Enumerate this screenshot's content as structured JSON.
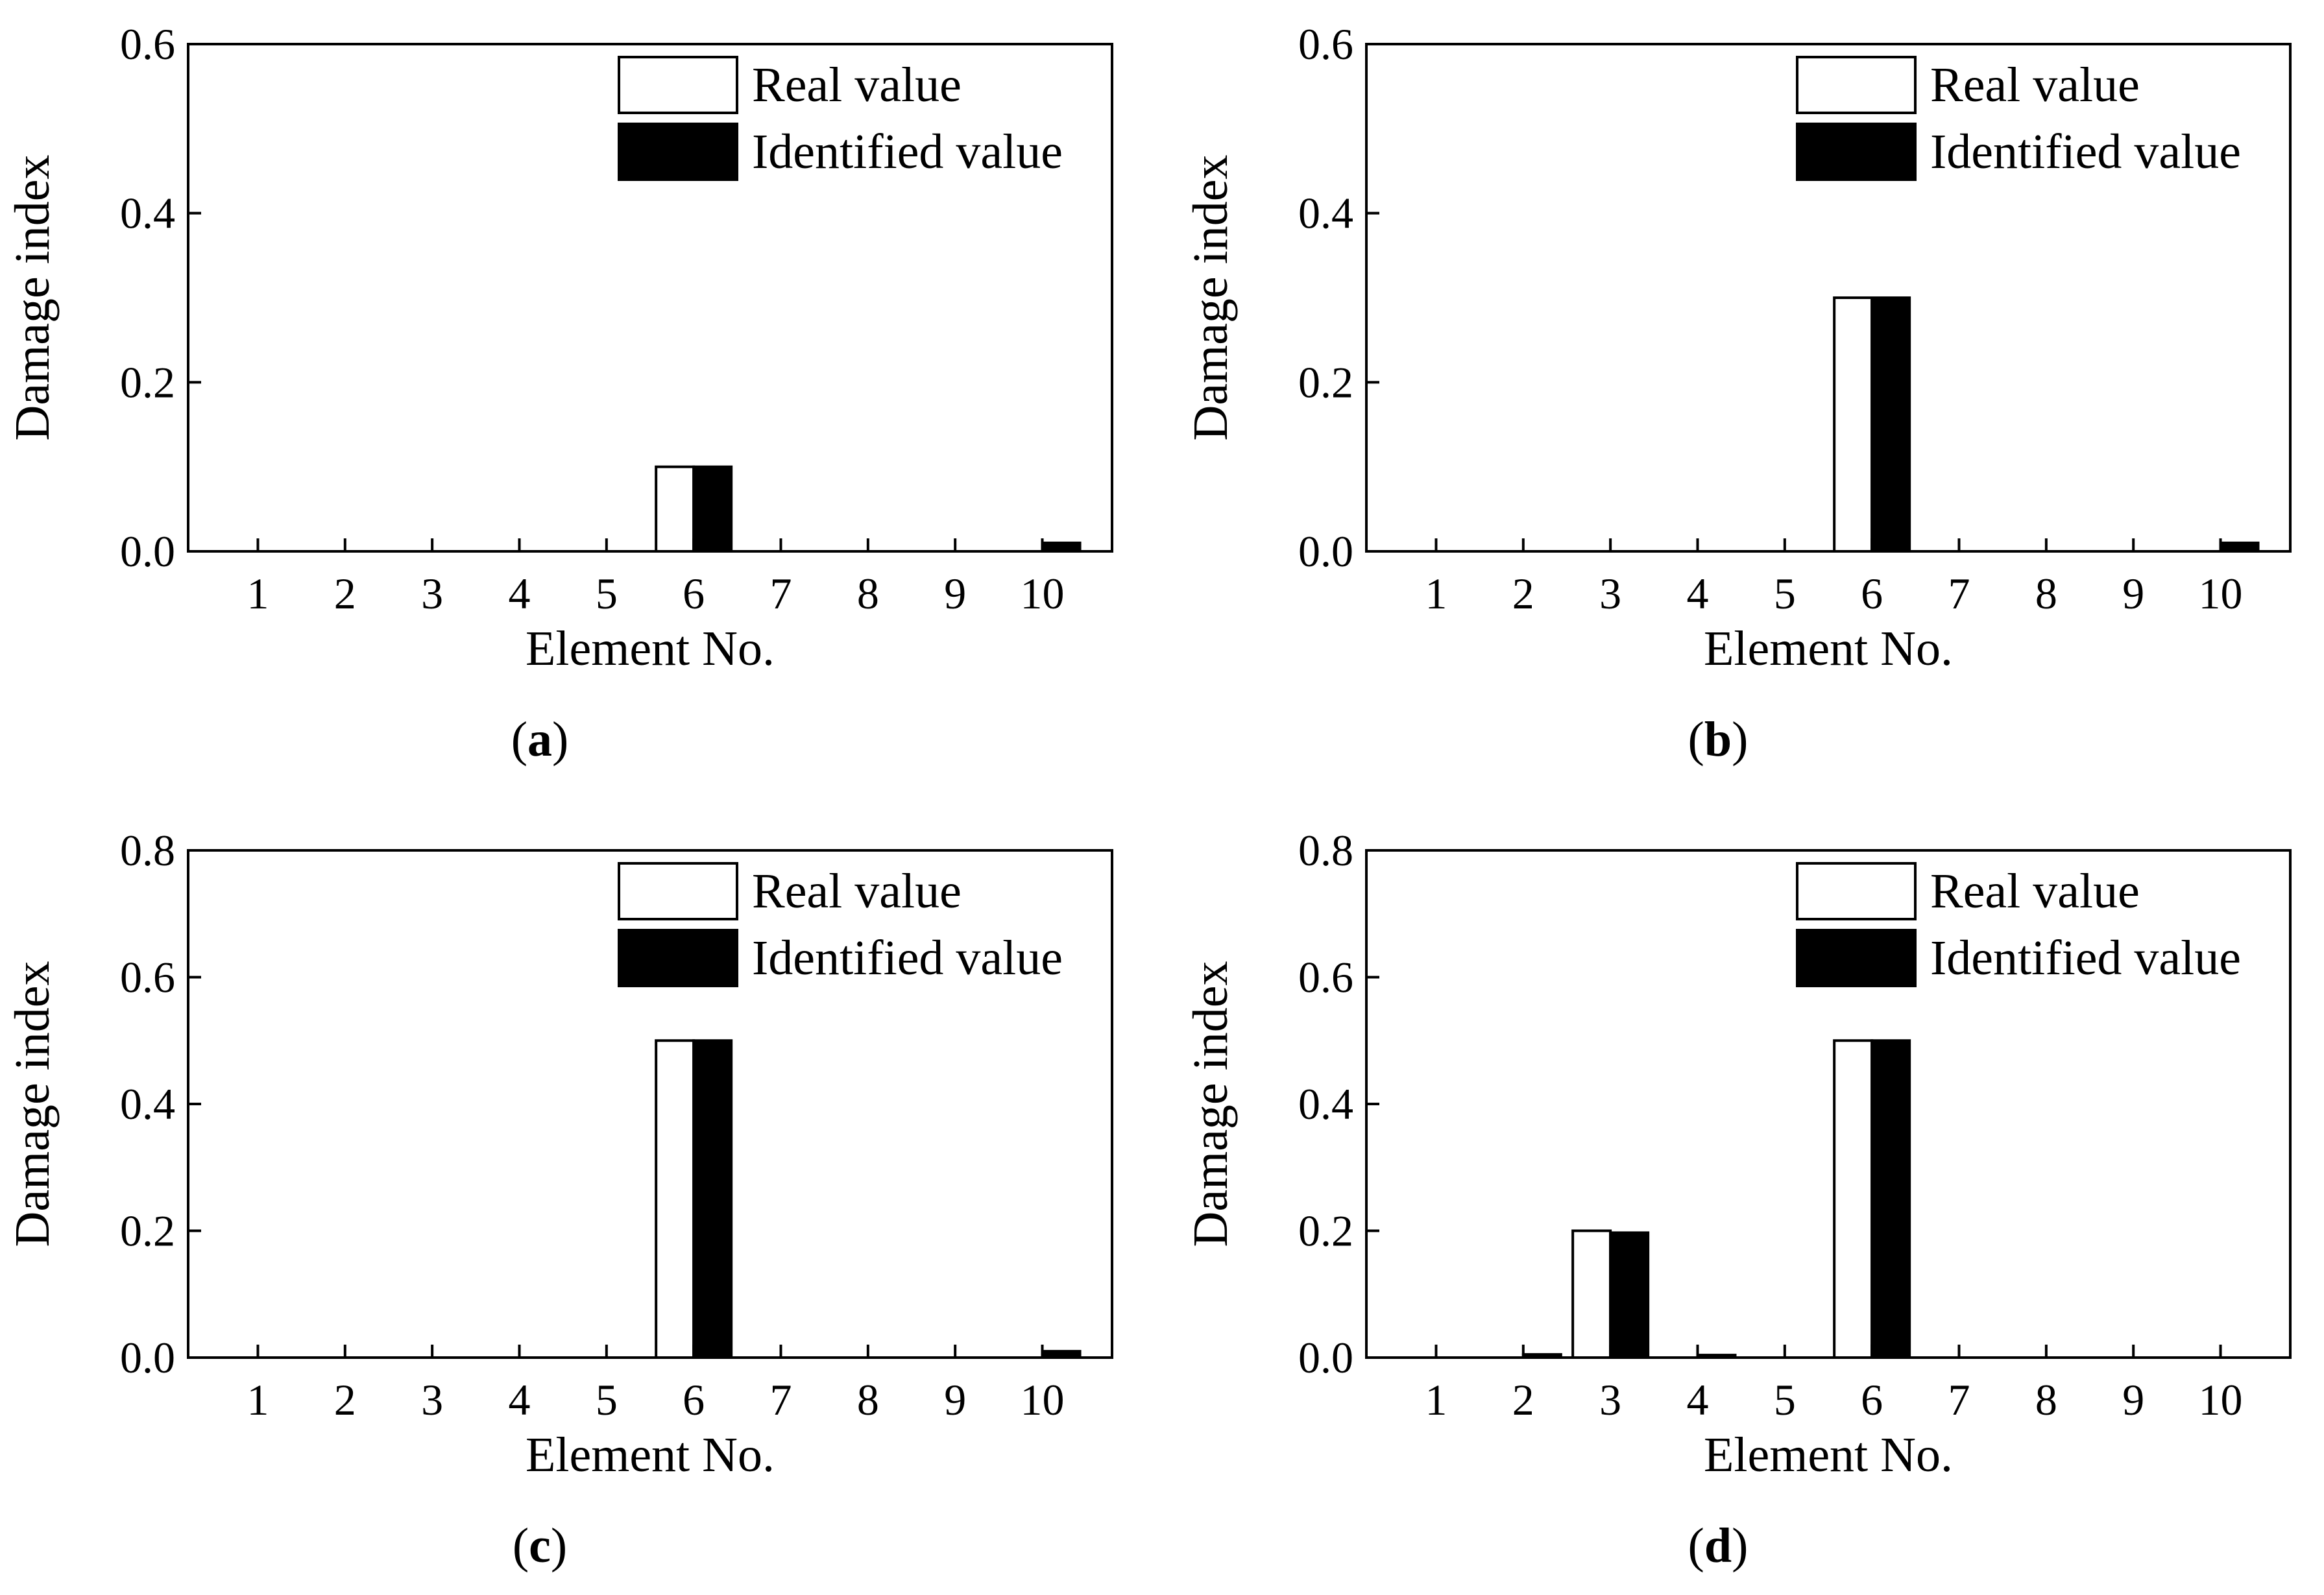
{
  "figure": {
    "colors": {
      "real": "#ffffff",
      "identified": "#000000",
      "axis": "#000000"
    }
  },
  "chart_data": [
    {
      "type": "bar",
      "panel_label": "a",
      "categories": [
        "1",
        "2",
        "3",
        "4",
        "5",
        "6",
        "7",
        "8",
        "9",
        "10"
      ],
      "series": [
        {
          "name": "Real value",
          "values": [
            0,
            0,
            0,
            0,
            0,
            0.1,
            0,
            0,
            0,
            0
          ]
        },
        {
          "name": "Identified value",
          "values": [
            0,
            0,
            0,
            0,
            0,
            0.1,
            0,
            0,
            0,
            0.01
          ]
        }
      ],
      "xlabel": "Element No.",
      "ylabel": "Damage index",
      "ylim": [
        0,
        0.6
      ],
      "yticks": [
        "0.0",
        "0.2",
        "0.4",
        "0.6"
      ],
      "legend_position": "top-right",
      "grid": false
    },
    {
      "type": "bar",
      "panel_label": "b",
      "categories": [
        "1",
        "2",
        "3",
        "4",
        "5",
        "6",
        "7",
        "8",
        "9",
        "10"
      ],
      "series": [
        {
          "name": "Real value",
          "values": [
            0,
            0,
            0,
            0,
            0,
            0.3,
            0,
            0,
            0,
            0
          ]
        },
        {
          "name": "Identified value",
          "values": [
            0,
            0,
            0,
            0,
            0,
            0.3,
            0,
            0,
            0,
            0.01
          ]
        }
      ],
      "xlabel": "Element No.",
      "ylabel": "Damage index",
      "ylim": [
        0,
        0.6
      ],
      "yticks": [
        "0.0",
        "0.2",
        "0.4",
        "0.6"
      ],
      "legend_position": "top-right",
      "grid": false
    },
    {
      "type": "bar",
      "panel_label": "c",
      "categories": [
        "1",
        "2",
        "3",
        "4",
        "5",
        "6",
        "7",
        "8",
        "9",
        "10"
      ],
      "series": [
        {
          "name": "Real value",
          "values": [
            0,
            0,
            0,
            0,
            0,
            0.5,
            0,
            0,
            0,
            0
          ]
        },
        {
          "name": "Identified value",
          "values": [
            0,
            0,
            0,
            0,
            0,
            0.5,
            0,
            0,
            0,
            0.01
          ]
        }
      ],
      "xlabel": "Element No.",
      "ylabel": "Damage index",
      "ylim": [
        0,
        0.8
      ],
      "yticks": [
        "0.0",
        "0.2",
        "0.4",
        "0.6",
        "0.8"
      ],
      "legend_position": "top-right",
      "grid": false
    },
    {
      "type": "bar",
      "panel_label": "d",
      "categories": [
        "1",
        "2",
        "3",
        "4",
        "5",
        "6",
        "7",
        "8",
        "9",
        "10"
      ],
      "series": [
        {
          "name": "Real value",
          "values": [
            0,
            0,
            0.2,
            0,
            0,
            0.5,
            0,
            0,
            0,
            0
          ]
        },
        {
          "name": "Identified value",
          "values": [
            0,
            0.005,
            0.197,
            0.004,
            0,
            0.5,
            0,
            0,
            0,
            0
          ]
        }
      ],
      "xlabel": "Element No.",
      "ylabel": "Damage index",
      "ylim": [
        0,
        0.8
      ],
      "yticks": [
        "0.0",
        "0.2",
        "0.4",
        "0.6",
        "0.8"
      ],
      "legend_position": "top-right",
      "grid": false
    }
  ]
}
